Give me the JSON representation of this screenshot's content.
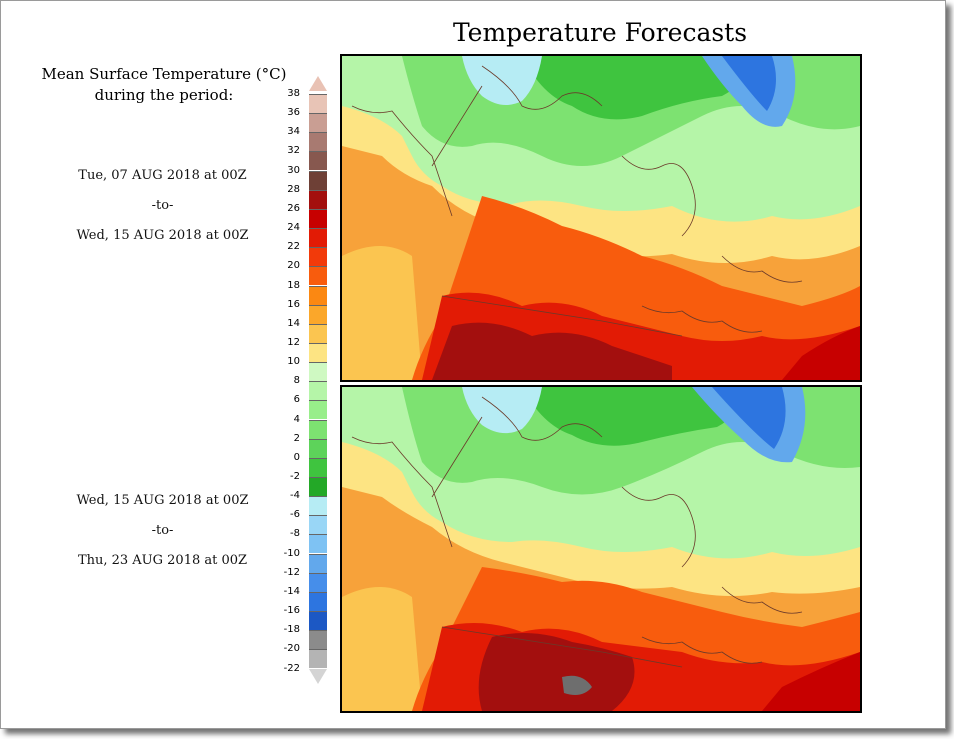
{
  "title": "Temperature Forecasts",
  "legend": {
    "title_line1": "Mean Surface Temperature (°C)",
    "title_line2": "during the period:",
    "ticks": [
      "38",
      "36",
      "34",
      "32",
      "30",
      "28",
      "26",
      "24",
      "22",
      "20",
      "18",
      "16",
      "14",
      "12",
      "10",
      "8",
      "6",
      "4",
      "2",
      "0",
      "-2",
      "-4",
      "-6",
      "-8",
      "-10",
      "-12",
      "-14",
      "-16",
      "-18",
      "-20",
      "-22"
    ],
    "colors": [
      "#e8c4b6",
      "#c99e93",
      "#a87a71",
      "#87584f",
      "#6e4036",
      "#a30f0e",
      "#c70000",
      "#e21b05",
      "#f23a0a",
      "#f85c0d",
      "#fb8812",
      "#fba72a",
      "#fbc550",
      "#fde483",
      "#cff9c2",
      "#b5f5a8",
      "#98ee8a",
      "#7de271",
      "#5dd35a",
      "#3fc43f",
      "#23a827",
      "#b6ecf4",
      "#99d6f6",
      "#7ec2f3",
      "#62a8ec",
      "#468eea",
      "#2d75e0",
      "#1c58c4",
      "#8b8b8b",
      "#b4b4b4",
      "#d4d4d4"
    ]
  },
  "period1": {
    "start": "Tue, 07 AUG 2018 at 00Z",
    "sep": "-to-",
    "end": "Wed, 15 AUG 2018 at 00Z"
  },
  "period2": {
    "start": "Wed, 15 AUG 2018 at 00Z",
    "sep": "-to-",
    "end": "Thu, 23 AUG 2018 at 00Z"
  }
}
